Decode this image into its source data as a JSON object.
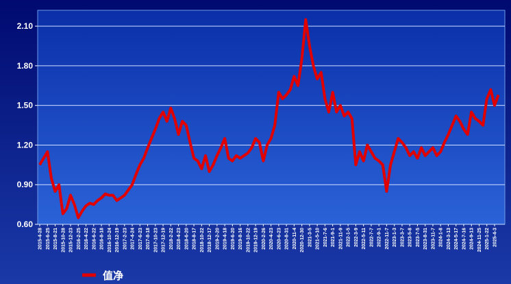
{
  "chart_data": {
    "type": "line",
    "categories": [
      "2015-4-28",
      null,
      "2015-6-25",
      null,
      "2015-8-21",
      null,
      "2015-10-28",
      null,
      "2015-12-23",
      null,
      "2016-2-25",
      null,
      "2016-4-22",
      null,
      "2016-6-22",
      null,
      "2016-8-18",
      null,
      "2016-10-24",
      null,
      "2016-12-19",
      null,
      "2017-2-23",
      null,
      "2017-4-24",
      null,
      "2017-6-23",
      null,
      "2017-8-18",
      null,
      "2017-10-23",
      null,
      "2017-12-19",
      null,
      "2018-2-22",
      null,
      "2018-4-23",
      null,
      "2018-6-20",
      null,
      "2018-8-17",
      null,
      "2018-10-22",
      null,
      "2018-12-17",
      null,
      "2019-2-20",
      null,
      "2019-4-18",
      null,
      "2019-6-20",
      null,
      "2019-8-16",
      null,
      "2019-10-22",
      null,
      "2019-12-19",
      null,
      "2020-2-26",
      null,
      "2020-4-23",
      null,
      "2020-6-23",
      null,
      "2020-8-31",
      null,
      "2020-11-4",
      null,
      "2020-12-30",
      null,
      "2021-3-5",
      null,
      "2021-5-10",
      null,
      "2021-7-6",
      null,
      "2021-9-1",
      null,
      "2021-11-9",
      null,
      "2022-1-5",
      null,
      "2022-3-9",
      null,
      "2022-5-11",
      null,
      "2022-7-7",
      null,
      "2022-9-1",
      null,
      "2022-11-7",
      null,
      "2023-1-3",
      null,
      "2023-3-7",
      null,
      "2023-5-8",
      null,
      "2023-7-5",
      null,
      "2023-8-31",
      null,
      "2023-11-7",
      null,
      "2024-1-8",
      null,
      "2024-3-13",
      null,
      "2024-5-17",
      null,
      "2024-7-16",
      null,
      "2024-9-13",
      null,
      "2024-11-25",
      null,
      "2025-1-22",
      null,
      "2025-4-3",
      null
    ],
    "series": [
      {
        "name": "值净",
        "color": "#e00000",
        "values": [
          1.05,
          1.1,
          1.15,
          0.95,
          0.85,
          0.9,
          0.68,
          0.72,
          0.82,
          0.75,
          0.65,
          0.7,
          0.74,
          0.76,
          0.75,
          0.78,
          0.8,
          0.83,
          0.82,
          0.82,
          0.78,
          0.8,
          0.82,
          0.86,
          0.9,
          0.98,
          1.05,
          1.1,
          1.18,
          1.25,
          1.32,
          1.4,
          1.45,
          1.38,
          1.48,
          1.4,
          1.28,
          1.38,
          1.35,
          1.22,
          1.1,
          1.08,
          1.02,
          1.12,
          1.0,
          1.05,
          1.12,
          1.18,
          1.25,
          1.1,
          1.08,
          1.12,
          1.1,
          1.12,
          1.14,
          1.18,
          1.25,
          1.22,
          1.08,
          1.2,
          1.25,
          1.35,
          1.6,
          1.55,
          1.58,
          1.62,
          1.72,
          1.65,
          1.85,
          2.15,
          1.95,
          1.8,
          1.7,
          1.75,
          1.55,
          1.45,
          1.6,
          1.45,
          1.5,
          1.42,
          1.45,
          1.4,
          1.05,
          1.15,
          1.08,
          1.2,
          1.15,
          1.1,
          1.08,
          1.05,
          0.85,
          1.05,
          1.15,
          1.25,
          1.22,
          1.18,
          1.12,
          1.15,
          1.1,
          1.18,
          1.12,
          1.15,
          1.18,
          1.12,
          1.15,
          1.22,
          1.28,
          1.35,
          1.42,
          1.38,
          1.32,
          1.28,
          1.45,
          1.4,
          1.38,
          1.35,
          1.55,
          1.62,
          1.5,
          1.58
        ]
      }
    ],
    "ylim": [
      0.6,
      2.22
    ],
    "yticks": [
      {
        "value": 0.6,
        "label": "0.60"
      },
      {
        "value": 0.9,
        "label": "0.90"
      },
      {
        "value": 1.2,
        "label": "1.20"
      },
      {
        "value": 1.5,
        "label": "1.50"
      },
      {
        "value": 1.8,
        "label": "1.80"
      },
      {
        "value": 2.1,
        "label": "2.10"
      }
    ],
    "grid": true
  }
}
